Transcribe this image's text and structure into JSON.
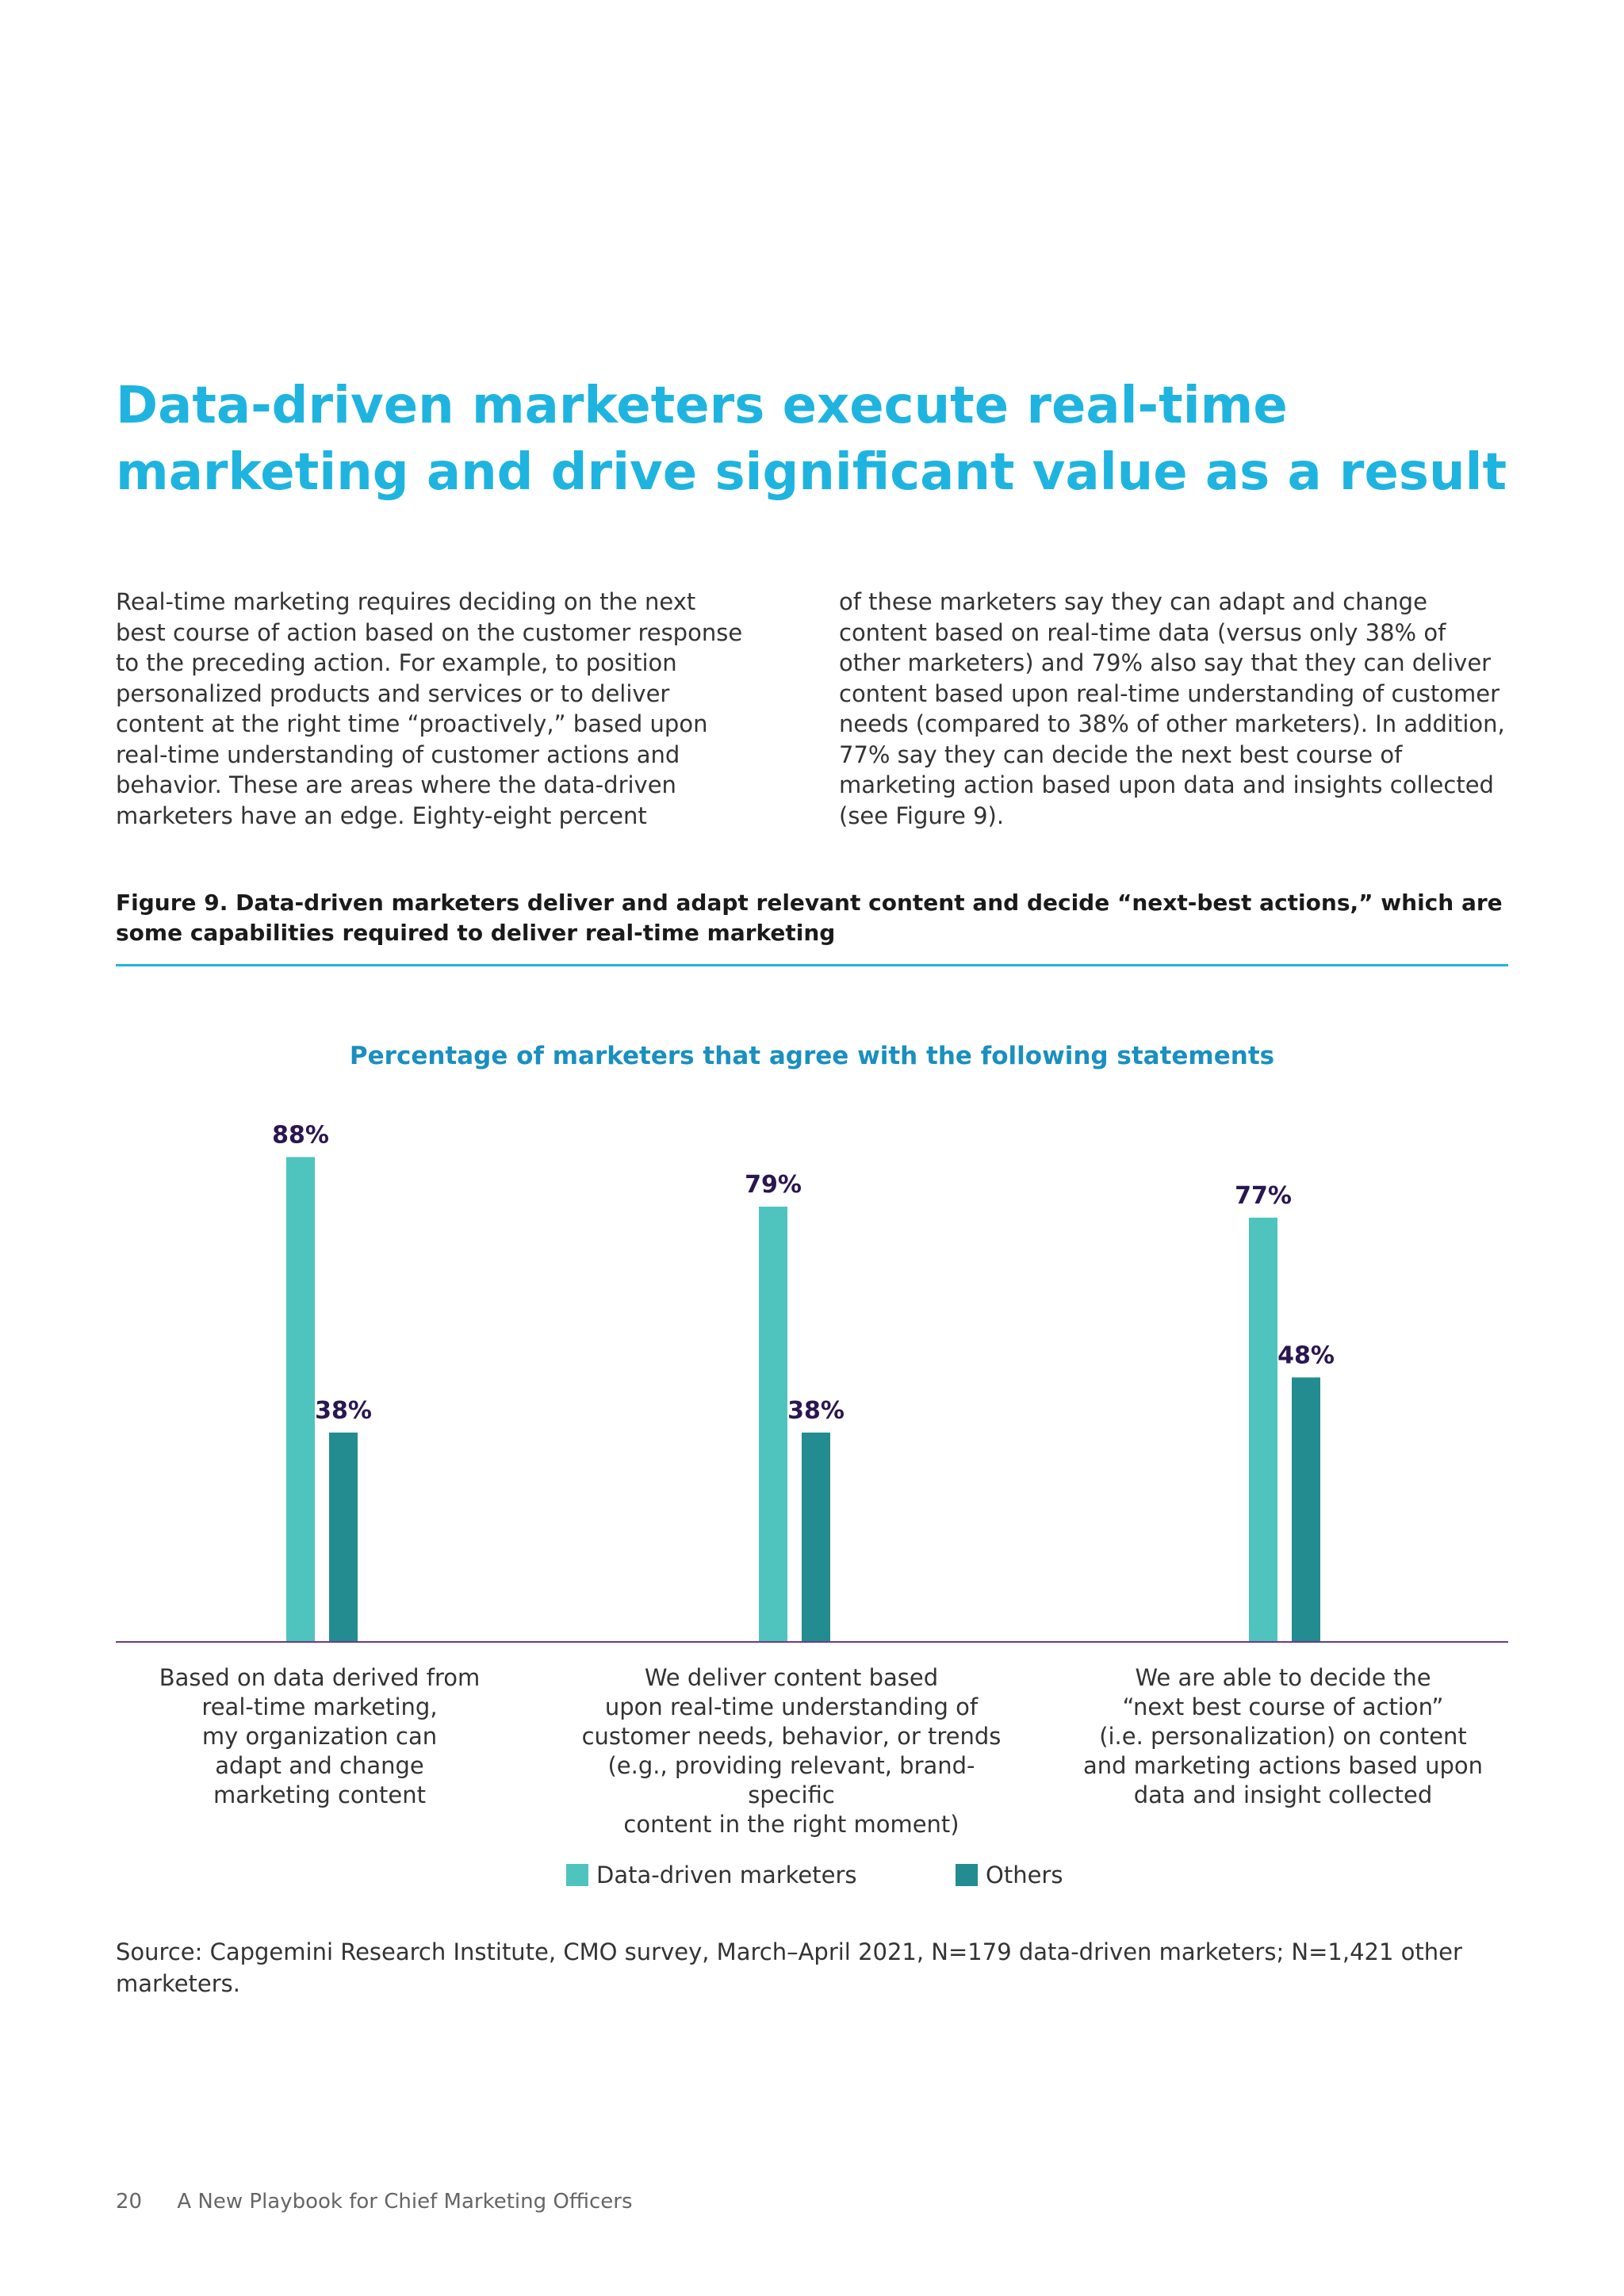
{
  "headline": "Data-driven marketers execute real-time marketing and drive significant value as a result",
  "body_left": "Real-time marketing requires deciding on the next best course of action based on the customer response to the preceding action. For example, to position personalized products and services or to deliver content at the right time “proactively,” based upon real-time understanding of customer actions and behavior. These are areas where the data-driven marketers have an edge. Eighty-eight percent",
  "body_right": "of these marketers say they can adapt and change content based on real-time data (versus only 38% of other marketers) and 79% also say that they can deliver content based upon real-time understanding of customer needs (compared to 38% of other marketers). In addition, 77% say they can decide the next best course of marketing action based upon data and insights collected (see Figure 9).",
  "figure_title": "Figure 9. Data-driven marketers deliver and adapt relevant content and decide “next-best actions,” which are some capabilities required to deliver real-time marketing",
  "chart_data": {
    "type": "bar",
    "title": "Percentage of marketers that agree with the following statements",
    "categories": [
      "Based on data derived from\nreal-time marketing,\nmy organization can\nadapt and change\nmarketing content",
      "We deliver content based\nupon real-time understanding of\ncustomer needs, behavior, or trends\n(e.g., providing relevant, brand-specific\ncontent in the right moment)",
      "We are able to decide the\n“next best course of action”\n(i.e. personalization) on content\nand marketing actions based upon\ndata and insight collected"
    ],
    "series": [
      {
        "name": "Data-driven marketers",
        "color": "#4fc3be",
        "values": [
          88,
          79,
          77
        ],
        "labels": [
          "88%",
          "79%",
          "77%"
        ]
      },
      {
        "name": "Others",
        "color": "#228c91",
        "values": [
          38,
          38,
          48
        ],
        "labels": [
          "38%",
          "38%",
          "48%"
        ]
      }
    ],
    "ylim": [
      0,
      100
    ],
    "grid": false,
    "legend_position": "bottom"
  },
  "source": "Source: Capgemini Research Institute, CMO survey, March–April 2021, N=179 data-driven marketers; N=1,421 other marketers.",
  "footer": {
    "page_number": "20",
    "publication": "A New Playbook for  Chief Marketing Officers"
  },
  "colors": {
    "headline": "#1fb4e0",
    "chart_title": "#1a8fc0",
    "value_label": "#2a1650",
    "baseline": "#6b3a8a"
  }
}
